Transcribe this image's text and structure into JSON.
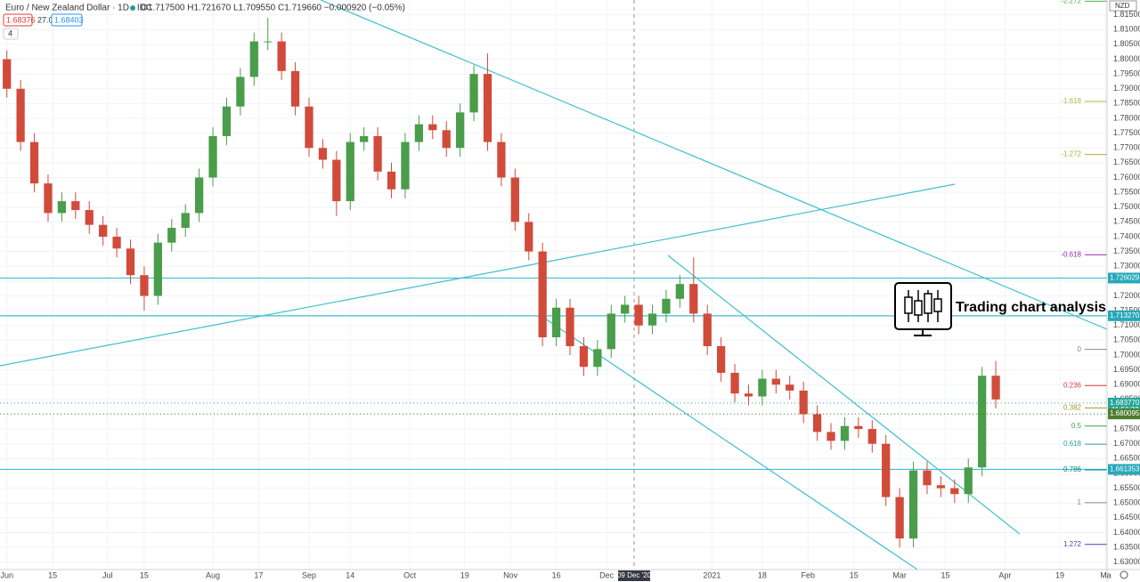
{
  "header": {
    "symbol": "Euro / New Zealand Dollar · 1D · IDC",
    "ohlc": "O1.717500 H1.721670 L1.709550 C1.719660 −0.000920 (−0.05%)",
    "bid": "1.68376",
    "spread": "27.0",
    "ask": "1.68403",
    "indicators": "4",
    "currency": "NZD"
  },
  "chart_data": {
    "type": "candlestick",
    "annotation": "Trading chart analysis",
    "up_color": "#4a9d4a",
    "down_color": "#d14b3b",
    "grid": true,
    "x": [
      0,
      3,
      6,
      9,
      12,
      15,
      18,
      21,
      24,
      27,
      30,
      33,
      36,
      39,
      42,
      45,
      48,
      51,
      54,
      57,
      60,
      63,
      66,
      69,
      72,
      75,
      78,
      81,
      84,
      87,
      90,
      93,
      96,
      99,
      102,
      105,
      108,
      111,
      114,
      117,
      120,
      123,
      126,
      129,
      132,
      135,
      138,
      141,
      144,
      147,
      150,
      153,
      156,
      159,
      162,
      165,
      168,
      171,
      174,
      177,
      180,
      183,
      186,
      189,
      192,
      195,
      198,
      201,
      204,
      207,
      210,
      213,
      216
    ],
    "open": [
      1.8,
      1.79,
      1.772,
      1.758,
      1.748,
      1.752,
      1.749,
      1.744,
      1.74,
      1.736,
      1.727,
      1.72,
      1.738,
      1.743,
      1.748,
      1.76,
      1.774,
      1.784,
      1.794,
      1.806,
      1.806,
      1.796,
      1.784,
      1.77,
      1.766,
      1.752,
      1.772,
      1.774,
      1.762,
      1.756,
      1.772,
      1.778,
      1.776,
      1.77,
      1.782,
      1.795,
      1.772,
      1.76,
      1.745,
      1.735,
      1.706,
      1.716,
      1.703,
      1.696,
      1.702,
      1.714,
      1.717,
      1.71,
      1.714,
      1.719,
      1.724,
      1.714,
      1.703,
      1.694,
      1.687,
      1.686,
      1.692,
      1.69,
      1.688,
      1.68,
      1.674,
      1.671,
      1.676,
      1.675,
      1.67,
      1.652,
      1.638,
      1.661,
      1.656,
      1.655,
      1.653,
      1.662,
      1.693
    ],
    "high": [
      1.803,
      1.793,
      1.775,
      1.761,
      1.755,
      1.755,
      1.752,
      1.747,
      1.743,
      1.739,
      1.73,
      1.741,
      1.746,
      1.751,
      1.763,
      1.777,
      1.787,
      1.797,
      1.809,
      1.814,
      1.809,
      1.799,
      1.787,
      1.773,
      1.769,
      1.775,
      1.777,
      1.777,
      1.765,
      1.775,
      1.781,
      1.781,
      1.779,
      1.785,
      1.798,
      1.802,
      1.775,
      1.763,
      1.748,
      1.738,
      1.719,
      1.719,
      1.706,
      1.705,
      1.717,
      1.72,
      1.72,
      1.717,
      1.722,
      1.727,
      1.733,
      1.717,
      1.706,
      1.697,
      1.69,
      1.695,
      1.695,
      1.693,
      1.691,
      1.683,
      1.677,
      1.679,
      1.679,
      1.678,
      1.673,
      1.655,
      1.664,
      1.664,
      1.659,
      1.658,
      1.665,
      1.696,
      1.698
    ],
    "low": [
      1.787,
      1.769,
      1.755,
      1.745,
      1.745,
      1.746,
      1.741,
      1.737,
      1.733,
      1.724,
      1.715,
      1.717,
      1.735,
      1.74,
      1.745,
      1.757,
      1.771,
      1.781,
      1.791,
      1.803,
      1.793,
      1.781,
      1.767,
      1.763,
      1.747,
      1.749,
      1.769,
      1.759,
      1.753,
      1.753,
      1.769,
      1.773,
      1.767,
      1.767,
      1.779,
      1.769,
      1.757,
      1.742,
      1.732,
      1.703,
      1.703,
      1.7,
      1.693,
      1.693,
      1.699,
      1.711,
      1.707,
      1.707,
      1.711,
      1.716,
      1.711,
      1.7,
      1.691,
      1.684,
      1.683,
      1.683,
      1.687,
      1.685,
      1.677,
      1.671,
      1.668,
      1.668,
      1.672,
      1.667,
      1.649,
      1.635,
      1.635,
      1.653,
      1.652,
      1.65,
      1.65,
      1.659,
      1.682
    ],
    "close": [
      1.79,
      1.772,
      1.758,
      1.748,
      1.752,
      1.749,
      1.744,
      1.74,
      1.736,
      1.727,
      1.72,
      1.738,
      1.743,
      1.748,
      1.76,
      1.774,
      1.784,
      1.794,
      1.806,
      1.806,
      1.796,
      1.784,
      1.77,
      1.766,
      1.752,
      1.772,
      1.774,
      1.762,
      1.756,
      1.772,
      1.778,
      1.776,
      1.77,
      1.782,
      1.795,
      1.772,
      1.76,
      1.745,
      1.735,
      1.706,
      1.716,
      1.703,
      1.696,
      1.702,
      1.714,
      1.717,
      1.71,
      1.714,
      1.719,
      1.724,
      1.714,
      1.703,
      1.694,
      1.687,
      1.686,
      1.692,
      1.69,
      1.688,
      1.68,
      1.674,
      1.671,
      1.676,
      1.675,
      1.67,
      1.652,
      1.638,
      1.661,
      1.656,
      1.655,
      1.653,
      1.662,
      1.693,
      1.685
    ],
    "xlim": [
      -1.5,
      240.3
    ],
    "ylim": [
      1.6275,
      1.82
    ],
    "xticks": [
      {
        "value": 0,
        "label": "Jun"
      },
      {
        "value": 10,
        "label": "15"
      },
      {
        "value": 22,
        "label": "Jul"
      },
      {
        "value": 30,
        "label": "15"
      },
      {
        "value": 45,
        "label": "Aug"
      },
      {
        "value": 55,
        "label": "17"
      },
      {
        "value": 66,
        "label": "Sep"
      },
      {
        "value": 75,
        "label": "14"
      },
      {
        "value": 88,
        "label": "Oct"
      },
      {
        "value": 100,
        "label": "19"
      },
      {
        "value": 110,
        "label": "Nov"
      },
      {
        "value": 120,
        "label": "16"
      },
      {
        "value": 131,
        "label": "Dec"
      },
      {
        "value": 154,
        "label": "2021"
      },
      {
        "value": 165,
        "label": "18"
      },
      {
        "value": 175,
        "label": "Feb"
      },
      {
        "value": 185,
        "label": "15"
      },
      {
        "value": 195,
        "label": "Mar"
      },
      {
        "value": 205,
        "label": "15"
      },
      {
        "value": 218,
        "label": "Apr"
      },
      {
        "value": 230,
        "label": "19"
      },
      {
        "value": 240,
        "label": "Ma"
      }
    ],
    "yticks": [
      {
        "value": 1.63,
        "label": "1.630000"
      },
      {
        "value": 1.635,
        "label": "1.635000"
      },
      {
        "value": 1.64,
        "label": "1.640000"
      },
      {
        "value": 1.645,
        "label": "1.645000"
      },
      {
        "value": 1.65,
        "label": "1.650000"
      },
      {
        "value": 1.655,
        "label": "1.655000"
      },
      {
        "value": 1.66,
        "label": "1.660000"
      },
      {
        "value": 1.665,
        "label": "1.665000"
      },
      {
        "value": 1.67,
        "label": "1.670000"
      },
      {
        "value": 1.675,
        "label": "1.675000"
      },
      {
        "value": 1.68,
        "label": "1.680000"
      },
      {
        "value": 1.685,
        "label": "1.685000"
      },
      {
        "value": 1.69,
        "label": "1.690000"
      },
      {
        "value": 1.695,
        "label": "1.695000"
      },
      {
        "value": 1.7,
        "label": "1.700000"
      },
      {
        "value": 1.705,
        "label": "1.705000"
      },
      {
        "value": 1.71,
        "label": "1.710000"
      },
      {
        "value": 1.715,
        "label": "1.715000"
      },
      {
        "value": 1.72,
        "label": "1.720000"
      },
      {
        "value": 1.725,
        "label": "1.725000"
      },
      {
        "value": 1.73,
        "label": "1.730000"
      },
      {
        "value": 1.735,
        "label": "1.735000"
      },
      {
        "value": 1.74,
        "label": "1.740000"
      },
      {
        "value": 1.745,
        "label": "1.745000"
      },
      {
        "value": 1.75,
        "label": "1.750000"
      },
      {
        "value": 1.755,
        "label": "1.755000"
      },
      {
        "value": 1.76,
        "label": "1.760000"
      },
      {
        "value": 1.765,
        "label": "1.765000"
      },
      {
        "value": 1.77,
        "label": "1.770000"
      },
      {
        "value": 1.775,
        "label": "1.775000"
      },
      {
        "value": 1.78,
        "label": "1.780000"
      },
      {
        "value": 1.785,
        "label": "1.785000"
      },
      {
        "value": 1.79,
        "label": "1.790000"
      },
      {
        "value": 1.795,
        "label": "1.795000"
      },
      {
        "value": 1.8,
        "label": "1.800000"
      },
      {
        "value": 1.805,
        "label": "1.805000"
      },
      {
        "value": 1.81,
        "label": "1.810000"
      },
      {
        "value": 1.815,
        "label": "1.815000"
      }
    ],
    "crosshair": {
      "x": 137,
      "label": "09 Dec '20"
    },
    "levels": [
      {
        "value": 1.726029,
        "label": "1.726029"
      },
      {
        "value": 1.71327,
        "label": "1.713270"
      },
      {
        "value": 1.661353,
        "label": "1.661353"
      }
    ],
    "price_tags": [
      {
        "value": 1.68377,
        "label": "1.683770",
        "color": "#26a69a"
      },
      {
        "value": 1.680095,
        "label": "1.680095",
        "color": "#4f7d2e"
      }
    ],
    "countdown": "11:56:33",
    "fib": {
      "start": 1.7019,
      "end": 1.6501,
      "ratios": [
        -2.272,
        -1.618,
        -1.272,
        -0.618,
        0,
        0.236,
        0.382,
        0.5,
        0.618,
        0.786,
        1,
        1.272
      ],
      "colors": [
        "#4caf50",
        "#a3c13a",
        "#b2a936",
        "#9c27b0",
        "#888888",
        "#e53935",
        "#9e9d24",
        "#43a047",
        "#26a69a",
        "#00897b",
        "#888888",
        "#5e35b1"
      ]
    }
  }
}
